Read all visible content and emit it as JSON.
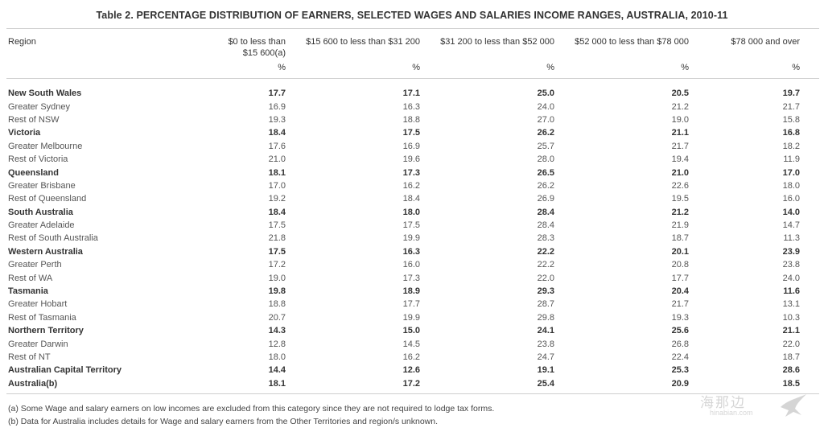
{
  "title": "Table 2. PERCENTAGE DISTRIBUTION OF EARNERS, SELECTED WAGES AND SALARIES INCOME RANGES, AUSTRALIA, 2010-11",
  "header": {
    "region": "Region",
    "columns": [
      {
        "line1": "$0 to less than",
        "line2": "$15 600(a)"
      },
      {
        "line1": "$15 600 to less than $31 200",
        "line2": ""
      },
      {
        "line1": "$31 200 to less than $52 000",
        "line2": ""
      },
      {
        "line1": "$52 000 to less than $78 000",
        "line2": ""
      },
      {
        "line1": "$78 000 and over",
        "line2": ""
      }
    ],
    "unit": "%"
  },
  "rows": [
    {
      "region": "New South Wales",
      "bold": true,
      "values": [
        "17.7",
        "17.1",
        "25.0",
        "20.5",
        "19.7"
      ]
    },
    {
      "region": "Greater Sydney",
      "bold": false,
      "values": [
        "16.9",
        "16.3",
        "24.0",
        "21.2",
        "21.7"
      ]
    },
    {
      "region": "Rest of NSW",
      "bold": false,
      "values": [
        "19.3",
        "18.8",
        "27.0",
        "19.0",
        "15.8"
      ]
    },
    {
      "region": "Victoria",
      "bold": true,
      "values": [
        "18.4",
        "17.5",
        "26.2",
        "21.1",
        "16.8"
      ]
    },
    {
      "region": "Greater Melbourne",
      "bold": false,
      "values": [
        "17.6",
        "16.9",
        "25.7",
        "21.7",
        "18.2"
      ]
    },
    {
      "region": "Rest of Victoria",
      "bold": false,
      "values": [
        "21.0",
        "19.6",
        "28.0",
        "19.4",
        "11.9"
      ]
    },
    {
      "region": "Queensland",
      "bold": true,
      "values": [
        "18.1",
        "17.3",
        "26.5",
        "21.0",
        "17.0"
      ]
    },
    {
      "region": "Greater Brisbane",
      "bold": false,
      "values": [
        "17.0",
        "16.2",
        "26.2",
        "22.6",
        "18.0"
      ]
    },
    {
      "region": "Rest of Queensland",
      "bold": false,
      "values": [
        "19.2",
        "18.4",
        "26.9",
        "19.5",
        "16.0"
      ]
    },
    {
      "region": "South Australia",
      "bold": true,
      "values": [
        "18.4",
        "18.0",
        "28.4",
        "21.2",
        "14.0"
      ]
    },
    {
      "region": "Greater Adelaide",
      "bold": false,
      "values": [
        "17.5",
        "17.5",
        "28.4",
        "21.9",
        "14.7"
      ]
    },
    {
      "region": "Rest of South Australia",
      "bold": false,
      "values": [
        "21.8",
        "19.9",
        "28.3",
        "18.7",
        "11.3"
      ]
    },
    {
      "region": "Western Australia",
      "bold": true,
      "values": [
        "17.5",
        "16.3",
        "22.2",
        "20.1",
        "23.9"
      ]
    },
    {
      "region": "Greater Perth",
      "bold": false,
      "values": [
        "17.2",
        "16.0",
        "22.2",
        "20.8",
        "23.8"
      ]
    },
    {
      "region": "Rest of WA",
      "bold": false,
      "values": [
        "19.0",
        "17.3",
        "22.0",
        "17.7",
        "24.0"
      ]
    },
    {
      "region": "Tasmania",
      "bold": true,
      "values": [
        "19.8",
        "18.9",
        "29.3",
        "20.4",
        "11.6"
      ]
    },
    {
      "region": "Greater Hobart",
      "bold": false,
      "values": [
        "18.8",
        "17.7",
        "28.7",
        "21.7",
        "13.1"
      ]
    },
    {
      "region": "Rest of Tasmania",
      "bold": false,
      "values": [
        "20.7",
        "19.9",
        "29.8",
        "19.3",
        "10.3"
      ]
    },
    {
      "region": "Northern Territory",
      "bold": true,
      "values": [
        "14.3",
        "15.0",
        "24.1",
        "25.6",
        "21.1"
      ]
    },
    {
      "region": "Greater Darwin",
      "bold": false,
      "values": [
        "12.8",
        "14.5",
        "23.8",
        "26.8",
        "22.0"
      ]
    },
    {
      "region": "Rest of NT",
      "bold": false,
      "values": [
        "18.0",
        "16.2",
        "24.7",
        "22.4",
        "18.7"
      ]
    },
    {
      "region": "Australian Capital Territory",
      "bold": true,
      "values": [
        "14.4",
        "12.6",
        "19.1",
        "25.3",
        "28.6"
      ]
    },
    {
      "region": "Australia(b)",
      "bold": true,
      "values": [
        "18.1",
        "17.2",
        "25.4",
        "20.9",
        "18.5"
      ]
    }
  ],
  "footnotes": [
    "(a) Some Wage and salary earners on low incomes are excluded from this category since they are not required to lodge tax forms.",
    "(b) Data for Australia includes details for Wage and salary earners from the Other Territories and region/s unknown."
  ],
  "watermark": {
    "cn": "海那边",
    "url": "hinabian.com",
    "icon": "bird-logo-icon"
  },
  "colors": {
    "text": "#3a3a3a",
    "rule": "#cfcfcf",
    "watermark": "#8a8a8a"
  }
}
